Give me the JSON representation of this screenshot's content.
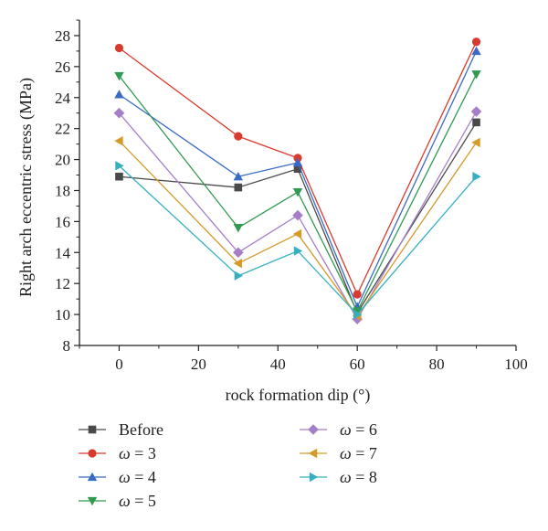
{
  "chart_data": {
    "type": "line",
    "xlabel": "rock formation dip (°)",
    "ylabel": "Right arch eccentric stress (MPa)",
    "xlim": [
      -10,
      100
    ],
    "ylim": [
      8,
      29
    ],
    "xticks": [
      0,
      20,
      40,
      60,
      80,
      100
    ],
    "yticks": [
      8,
      10,
      12,
      14,
      16,
      18,
      20,
      22,
      24,
      26,
      28
    ],
    "x": [
      0,
      30,
      45,
      60,
      90
    ],
    "legend_position": "bottom",
    "series": [
      {
        "name": "Before",
        "legend_prefix": "",
        "legend_value": "",
        "color": "#4a4a4a",
        "marker": "square",
        "values": [
          18.9,
          18.2,
          19.4,
          10.1,
          22.4
        ]
      },
      {
        "name": "ω = 3",
        "legend_prefix": "ω",
        "legend_value": " = 3",
        "color": "#d93a2e",
        "marker": "circle",
        "values": [
          27.2,
          21.5,
          20.1,
          11.3,
          27.6
        ]
      },
      {
        "name": "ω = 4",
        "legend_prefix": "ω",
        "legend_value": " = 4",
        "color": "#3a6bc2",
        "marker": "triangle-up",
        "values": [
          24.2,
          18.9,
          19.8,
          10.5,
          27.0
        ]
      },
      {
        "name": "ω = 5",
        "legend_prefix": "ω",
        "legend_value": " = 5",
        "color": "#2f9a50",
        "marker": "triangle-down",
        "values": [
          25.4,
          15.6,
          17.9,
          10.2,
          25.5
        ]
      },
      {
        "name": "ω = 6",
        "legend_prefix": "ω",
        "legend_value": " = 6",
        "color": "#a57ec8",
        "marker": "diamond",
        "values": [
          23.0,
          14.0,
          16.4,
          9.7,
          23.1
        ]
      },
      {
        "name": "ω = 7",
        "legend_prefix": "ω",
        "legend_value": " = 7",
        "color": "#d49a28",
        "marker": "triangle-left",
        "values": [
          21.2,
          13.3,
          15.2,
          9.9,
          21.1
        ]
      },
      {
        "name": "ω = 8",
        "legend_prefix": "ω",
        "legend_value": " = 8",
        "color": "#36b0c0",
        "marker": "triangle-right",
        "values": [
          19.6,
          12.5,
          14.1,
          10.0,
          18.9
        ]
      }
    ]
  }
}
